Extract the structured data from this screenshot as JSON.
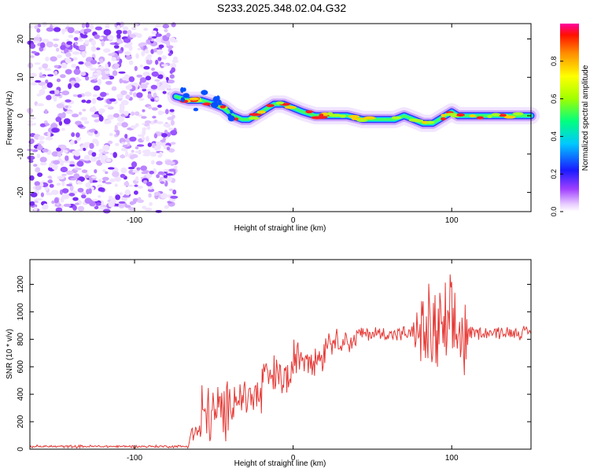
{
  "title": "S233.2025.348.02.04.G32",
  "chart_data": [
    {
      "type": "heatmap",
      "xlabel": "Height of straight line (km)",
      "ylabel": "Frequency (Hz)",
      "xlim": [
        -166,
        150
      ],
      "ylim": [
        -25,
        24
      ],
      "xticks": [
        -100,
        0,
        100
      ],
      "yticks": [
        -20,
        -10,
        0,
        10,
        20
      ],
      "noise_region_x": [
        -166,
        -74
      ],
      "signal_onset_x": -74,
      "signal_track": {
        "x": [
          -74,
          -66,
          -58,
          -50,
          -44,
          -38,
          -32,
          -28,
          -24,
          -20,
          -16,
          -12,
          -6,
          0,
          6,
          14,
          24,
          34,
          44,
          54,
          64,
          70,
          76,
          82,
          88,
          92,
          96,
          100,
          104,
          110,
          120,
          130,
          140,
          150
        ],
        "y": [
          5,
          4,
          4,
          3,
          2,
          0,
          -1,
          -1,
          0,
          1,
          2,
          3,
          3,
          2,
          1,
          0,
          0,
          0,
          -1,
          -1,
          -1,
          0,
          -1,
          -2,
          -2,
          -1,
          0,
          1,
          0,
          0,
          0,
          0,
          0,
          0
        ]
      },
      "colorbar": {
        "label": "Normalized spectral amplitude",
        "ticks": [
          0.0,
          0.2,
          0.4,
          0.6,
          0.8
        ],
        "tick_labels": [
          "0.0",
          "0.2",
          "0.4",
          "0.6",
          "0.8"
        ],
        "range": [
          0,
          1
        ]
      }
    },
    {
      "type": "line",
      "color": "#e53935",
      "xlabel": "Height of straight line (km)",
      "ylabel": "SNR (10 * v/v)",
      "xlim": [
        -166,
        150
      ],
      "ylim": [
        0,
        1380
      ],
      "xticks": [
        -100,
        0,
        100
      ],
      "yticks": [
        0,
        200,
        400,
        600,
        800,
        1000,
        1200
      ],
      "series": [
        {
          "name": "SNR",
          "segments": [
            {
              "x_from": -166,
              "x_to": -66,
              "mean": 20,
              "amp": 12
            },
            {
              "x_from": -66,
              "x_to": -58,
              "mean": 120,
              "amp": 120
            },
            {
              "x_from": -58,
              "x_to": -40,
              "mean": 260,
              "amp": 280
            },
            {
              "x_from": -40,
              "x_to": -20,
              "mean": 380,
              "amp": 220
            },
            {
              "x_from": -20,
              "x_to": 0,
              "mean": 520,
              "amp": 200
            },
            {
              "x_from": 0,
              "x_to": 20,
              "mean": 680,
              "amp": 160
            },
            {
              "x_from": 20,
              "x_to": 40,
              "mean": 790,
              "amp": 110
            },
            {
              "x_from": 40,
              "x_to": 75,
              "mean": 840,
              "amp": 70
            },
            {
              "x_from": 75,
              "x_to": 80,
              "mean": 860,
              "amp": 160
            },
            {
              "x_from": 80,
              "x_to": 110,
              "mean": 840,
              "amp": 460
            },
            {
              "x_from": 110,
              "x_to": 150,
              "mean": 850,
              "amp": 60
            }
          ]
        }
      ]
    }
  ]
}
